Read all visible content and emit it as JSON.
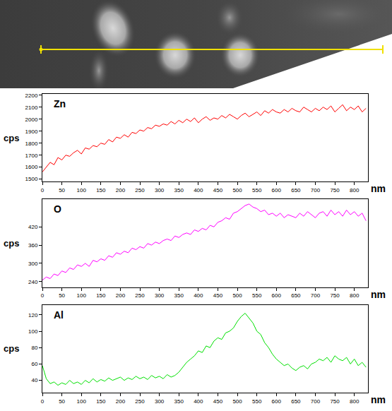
{
  "chart_data": [
    {
      "type": "line",
      "title": "Zn",
      "x_label": "nm",
      "y_label": "cps",
      "color": "#ff0000",
      "grid": false,
      "x": [
        0,
        10,
        20,
        30,
        40,
        50,
        60,
        70,
        80,
        90,
        100,
        110,
        120,
        130,
        140,
        150,
        160,
        170,
        180,
        190,
        200,
        210,
        220,
        230,
        240,
        250,
        260,
        270,
        280,
        290,
        300,
        310,
        320,
        330,
        340,
        350,
        360,
        370,
        380,
        390,
        400,
        410,
        420,
        430,
        440,
        450,
        460,
        470,
        480,
        490,
        500,
        510,
        520,
        530,
        540,
        550,
        560,
        570,
        580,
        590,
        600,
        610,
        620,
        630,
        640,
        650,
        660,
        670,
        680,
        690,
        700,
        710,
        720,
        730,
        740,
        750,
        760,
        770,
        780,
        790,
        800,
        810,
        820,
        830
      ],
      "values": [
        1560,
        1600,
        1640,
        1620,
        1680,
        1660,
        1700,
        1690,
        1720,
        1740,
        1710,
        1760,
        1750,
        1780,
        1770,
        1800,
        1790,
        1830,
        1810,
        1850,
        1840,
        1870,
        1850,
        1890,
        1880,
        1910,
        1900,
        1930,
        1920,
        1950,
        1940,
        1960,
        1950,
        1980,
        1960,
        1990,
        1970,
        2000,
        1980,
        2010,
        1970,
        2000,
        2020,
        1990,
        2010,
        2000,
        2030,
        2010,
        2040,
        2020,
        2000,
        2030,
        2050,
        2020,
        2040,
        2060,
        2030,
        2070,
        2050,
        2080,
        2060,
        2050,
        2080,
        2060,
        2090,
        2070,
        2060,
        2100,
        2080,
        2060,
        2090,
        2070,
        2100,
        2080,
        2110,
        2060,
        2090,
        2120,
        2070,
        2100,
        2080,
        2110,
        2060,
        2090
      ],
      "xlim": [
        0,
        835
      ],
      "xticks": [
        0,
        50,
        100,
        150,
        200,
        250,
        300,
        350,
        400,
        450,
        500,
        550,
        600,
        650,
        700,
        750,
        800
      ],
      "ylim": [
        1480,
        2210
      ],
      "yticks": [
        1500,
        1600,
        1700,
        1800,
        1900,
        2000,
        2100,
        2200
      ]
    },
    {
      "type": "line",
      "title": "O",
      "x_label": "nm",
      "y_label": "cps",
      "color": "#ff00ff",
      "grid": false,
      "x": [
        0,
        10,
        20,
        30,
        40,
        50,
        60,
        70,
        80,
        90,
        100,
        110,
        120,
        130,
        140,
        150,
        160,
        170,
        180,
        190,
        200,
        210,
        220,
        230,
        240,
        250,
        260,
        270,
        280,
        290,
        300,
        310,
        320,
        330,
        340,
        350,
        360,
        370,
        380,
        390,
        400,
        410,
        420,
        430,
        440,
        450,
        460,
        470,
        480,
        490,
        500,
        510,
        520,
        530,
        540,
        550,
        560,
        570,
        580,
        590,
        600,
        610,
        620,
        630,
        640,
        650,
        660,
        670,
        680,
        690,
        700,
        710,
        720,
        730,
        740,
        750,
        760,
        770,
        780,
        790,
        800,
        810,
        820,
        830
      ],
      "values": [
        245,
        255,
        250,
        265,
        260,
        275,
        270,
        285,
        280,
        295,
        290,
        300,
        290,
        310,
        305,
        315,
        310,
        325,
        320,
        335,
        330,
        340,
        335,
        350,
        345,
        355,
        350,
        365,
        360,
        370,
        365,
        375,
        380,
        375,
        390,
        385,
        395,
        400,
        395,
        410,
        405,
        415,
        410,
        425,
        420,
        435,
        440,
        450,
        445,
        465,
        470,
        480,
        490,
        495,
        485,
        480,
        470,
        475,
        460,
        465,
        455,
        465,
        450,
        460,
        455,
        450,
        465,
        455,
        470,
        460,
        450,
        465,
        470,
        455,
        475,
        460,
        470,
        455,
        475,
        460,
        470,
        455,
        465,
        440
      ],
      "xlim": [
        0,
        835
      ],
      "xticks": [
        0,
        50,
        100,
        150,
        200,
        250,
        300,
        350,
        400,
        450,
        500,
        550,
        600,
        650,
        700,
        750,
        800
      ],
      "ylim": [
        222,
        510
      ],
      "yticks": [
        240,
        300,
        360,
        420
      ]
    },
    {
      "type": "line",
      "title": "Al",
      "x_label": "nm",
      "y_label": "cps",
      "color": "#00e000",
      "grid": false,
      "x": [
        0,
        10,
        20,
        30,
        40,
        50,
        60,
        70,
        80,
        90,
        100,
        110,
        120,
        130,
        140,
        150,
        160,
        170,
        180,
        190,
        200,
        210,
        220,
        230,
        240,
        250,
        260,
        270,
        280,
        290,
        300,
        310,
        320,
        330,
        340,
        350,
        360,
        370,
        380,
        390,
        400,
        410,
        420,
        430,
        440,
        450,
        460,
        470,
        480,
        490,
        500,
        510,
        520,
        530,
        540,
        550,
        560,
        570,
        580,
        590,
        600,
        610,
        620,
        630,
        640,
        650,
        660,
        670,
        680,
        690,
        700,
        710,
        720,
        730,
        740,
        750,
        760,
        770,
        780,
        790,
        800,
        810,
        820,
        830
      ],
      "values": [
        58,
        42,
        36,
        38,
        34,
        37,
        35,
        40,
        36,
        38,
        35,
        40,
        37,
        42,
        38,
        41,
        39,
        43,
        40,
        42,
        44,
        40,
        43,
        41,
        45,
        42,
        44,
        41,
        46,
        43,
        45,
        42,
        47,
        44,
        46,
        50,
        56,
        62,
        66,
        70,
        76,
        74,
        82,
        80,
        88,
        92,
        90,
        98,
        100,
        104,
        112,
        118,
        122,
        116,
        110,
        100,
        96,
        86,
        80,
        72,
        66,
        62,
        58,
        60,
        55,
        52,
        56,
        58,
        54,
        60,
        62,
        66,
        64,
        68,
        62,
        70,
        66,
        64,
        68,
        60,
        66,
        58,
        62,
        56
      ],
      "xlim": [
        0,
        835
      ],
      "xticks": [
        0,
        50,
        100,
        150,
        200,
        250,
        300,
        350,
        400,
        450,
        500,
        550,
        600,
        650,
        700,
        750,
        800
      ],
      "ylim": [
        25,
        132
      ],
      "yticks": [
        40,
        60,
        80,
        100,
        120
      ]
    }
  ]
}
